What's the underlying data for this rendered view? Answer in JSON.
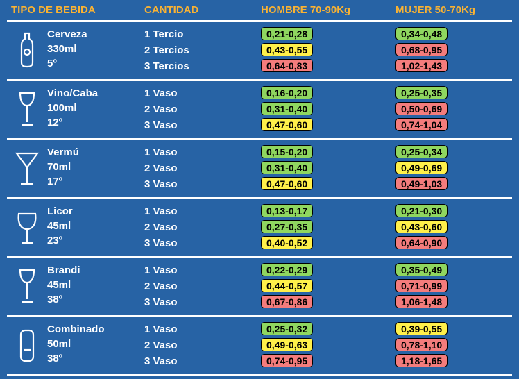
{
  "colors": {
    "background": "#2763a5",
    "header_text": "#f9b233",
    "divider": "#ffffff",
    "text": "#ffffff",
    "pill_green": "#8fd65f",
    "pill_yellow": "#fff04a",
    "pill_red": "#f47c7c",
    "pill_border": "#000000"
  },
  "headers": {
    "tipo": "TIPO DE BEBIDA",
    "cantidad": "CANTIDAD",
    "hombre": "HOMBRE 70-90Kg",
    "mujer": "MUJER 50-70Kg"
  },
  "drinks": [
    {
      "name": "Cerveza",
      "volume": "330ml",
      "alc": "5º",
      "icon": "bottle",
      "rows": [
        {
          "qty": "1 Tercio",
          "h": "0,21-0,28",
          "hc": "green",
          "m": "0,34-0,48",
          "mc": "green"
        },
        {
          "qty": "2 Tercios",
          "h": "0,43-0,55",
          "hc": "yellow",
          "m": "0,68-0,95",
          "mc": "red"
        },
        {
          "qty": "3 Tercios",
          "h": "0,64-0,83",
          "hc": "red",
          "m": "1,02-1,43",
          "mc": "red"
        }
      ]
    },
    {
      "name": "Vino/Caba",
      "volume": "100ml",
      "alc": "12º",
      "icon": "wine",
      "rows": [
        {
          "qty": "1 Vaso",
          "h": "0,16-0,20",
          "hc": "green",
          "m": "0,25-0,35",
          "mc": "green"
        },
        {
          "qty": "2 Vaso",
          "h": "0,31-0,40",
          "hc": "green",
          "m": "0,50-0,69",
          "mc": "red"
        },
        {
          "qty": "3 Vaso",
          "h": "0,47-0,60",
          "hc": "yellow",
          "m": "0,74-1,04",
          "mc": "red"
        }
      ]
    },
    {
      "name": "Vermú",
      "volume": "70ml",
      "alc": "17º",
      "icon": "martini",
      "rows": [
        {
          "qty": "1 Vaso",
          "h": "0,15-0,20",
          "hc": "green",
          "m": "0,25-0,34",
          "mc": "green"
        },
        {
          "qty": "2 Vaso",
          "h": "0,31-0,40",
          "hc": "green",
          "m": "0,49-0,69",
          "mc": "yellow"
        },
        {
          "qty": "3 Vaso",
          "h": "0,47-0,60",
          "hc": "yellow",
          "m": "0,49-1,03",
          "mc": "red"
        }
      ]
    },
    {
      "name": "Licor",
      "volume": "45ml",
      "alc": "23º",
      "icon": "snifter",
      "rows": [
        {
          "qty": "1 Vaso",
          "h": "0,13-0,17",
          "hc": "green",
          "m": "0,21-0,30",
          "mc": "green"
        },
        {
          "qty": "2 Vaso",
          "h": "0,27-0,35",
          "hc": "green",
          "m": "0,43-0,60",
          "mc": "yellow"
        },
        {
          "qty": "3 Vaso",
          "h": "0,40-0,52",
          "hc": "yellow",
          "m": "0,64-0,90",
          "mc": "red"
        }
      ]
    },
    {
      "name": "Brandi",
      "volume": "45ml",
      "alc": "38º",
      "icon": "wine",
      "rows": [
        {
          "qty": "1 Vaso",
          "h": "0,22-0,29",
          "hc": "green",
          "m": "0,35-0,49",
          "mc": "green"
        },
        {
          "qty": "2 Vaso",
          "h": "0,44-0,57",
          "hc": "yellow",
          "m": "0,71-0,99",
          "mc": "red"
        },
        {
          "qty": "3 Vaso",
          "h": "0,67-0,86",
          "hc": "red",
          "m": "1,06-1,48",
          "mc": "red"
        }
      ]
    },
    {
      "name": "Combinado",
      "volume": "50ml",
      "alc": "38º",
      "icon": "tumbler",
      "rows": [
        {
          "qty": "1 Vaso",
          "h": "0,25-0,32",
          "hc": "green",
          "m": "0,39-0,55",
          "mc": "yellow"
        },
        {
          "qty": "2 Vaso",
          "h": "0,49-0,63",
          "hc": "yellow",
          "m": "0,78-1,10",
          "mc": "red"
        },
        {
          "qty": "3 Vaso",
          "h": "0,74-0,95",
          "hc": "red",
          "m": "1,18-1,65",
          "mc": "red"
        }
      ]
    }
  ]
}
